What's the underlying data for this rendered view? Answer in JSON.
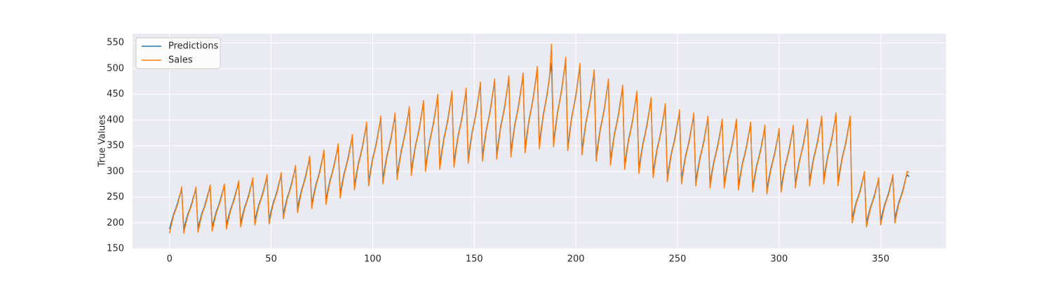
{
  "chart_data": {
    "type": "line",
    "ylabel": "True Values",
    "xlim": [
      -18.2,
      382.2
    ],
    "ylim": [
      150,
      568
    ],
    "xticks": [
      0,
      50,
      100,
      150,
      200,
      250,
      300,
      350
    ],
    "yticks": [
      150,
      200,
      250,
      300,
      350,
      400,
      450,
      500,
      550
    ],
    "grid": true,
    "legend": "upper left",
    "x": [
      0,
      1,
      2,
      3,
      4,
      5,
      6,
      7,
      8,
      9,
      10,
      11,
      12,
      13,
      14,
      15,
      16,
      17,
      18,
      19,
      20,
      21,
      22,
      23,
      24,
      25,
      26,
      27,
      28,
      29,
      30,
      31,
      32,
      33,
      34,
      35,
      36,
      37,
      38,
      39,
      40,
      41,
      42,
      43,
      44,
      45,
      46,
      47,
      48,
      49,
      50,
      51,
      52,
      53,
      54,
      55,
      56,
      57,
      58,
      59,
      60,
      61,
      62,
      63,
      64,
      65,
      66,
      67,
      68,
      69,
      70,
      71,
      72,
      73,
      74,
      75,
      76,
      77,
      78,
      79,
      80,
      81,
      82,
      83,
      84,
      85,
      86,
      87,
      88,
      89,
      90,
      91,
      92,
      93,
      94,
      95,
      96,
      97,
      98,
      99,
      100,
      101,
      102,
      103,
      104,
      105,
      106,
      107,
      108,
      109,
      110,
      111,
      112,
      113,
      114,
      115,
      116,
      117,
      118,
      119,
      120,
      121,
      122,
      123,
      124,
      125,
      126,
      127,
      128,
      129,
      130,
      131,
      132,
      133,
      134,
      135,
      136,
      137,
      138,
      139,
      140,
      141,
      142,
      143,
      144,
      145,
      146,
      147,
      148,
      149,
      150,
      151,
      152,
      153,
      154,
      155,
      156,
      157,
      158,
      159,
      160,
      161,
      162,
      163,
      164,
      165,
      166,
      167,
      168,
      169,
      170,
      171,
      172,
      173,
      174,
      175,
      176,
      177,
      178,
      179,
      180,
      181,
      182,
      183,
      184,
      185,
      186,
      187,
      188,
      189,
      190,
      191,
      192,
      193,
      194,
      195,
      196,
      197,
      198,
      199,
      200,
      201,
      202,
      203,
      204,
      205,
      206,
      207,
      208,
      209,
      210,
      211,
      212,
      213,
      214,
      215,
      216,
      217,
      218,
      219,
      220,
      221,
      222,
      223,
      224,
      225,
      226,
      227,
      228,
      229,
      230,
      231,
      232,
      233,
      234,
      235,
      236,
      237,
      238,
      239,
      240,
      241,
      242,
      243,
      244,
      245,
      246,
      247,
      248,
      249,
      250,
      251,
      252,
      253,
      254,
      255,
      256,
      257,
      258,
      259,
      260,
      261,
      262,
      263,
      264,
      265,
      266,
      267,
      268,
      269,
      270,
      271,
      272,
      273,
      274,
      275,
      276,
      277,
      278,
      279,
      280,
      281,
      282,
      283,
      284,
      285,
      286,
      287,
      288,
      289,
      290,
      291,
      292,
      293,
      294,
      295,
      296,
      297,
      298,
      299,
      300,
      301,
      302,
      303,
      304,
      305,
      306,
      307,
      308,
      309,
      310,
      311,
      312,
      313,
      314,
      315,
      316,
      317,
      318,
      319,
      320,
      321,
      322,
      323,
      324,
      325,
      326,
      327,
      328,
      329,
      330,
      331,
      332,
      333,
      334,
      335,
      336,
      337,
      338,
      339,
      340,
      341,
      342,
      343,
      344,
      345,
      346,
      347,
      348,
      349,
      350,
      351,
      352,
      353,
      354,
      355,
      356,
      357,
      358,
      359,
      360,
      361,
      362,
      363,
      364
    ],
    "series": [
      {
        "name": "Predictions",
        "color": "#1f77b4",
        "values": [
          188,
          203,
          217,
          227,
          239,
          254,
          264,
          188,
          203,
          217,
          227,
          239,
          254,
          264,
          190,
          205,
          220,
          230,
          243,
          258,
          268,
          192,
          207,
          222,
          232,
          245,
          260,
          270,
          196,
          212,
          226,
          237,
          250,
          265,
          276,
          200,
          216,
          231,
          242,
          255,
          271,
          282,
          204,
          221,
          236,
          247,
          260,
          276,
          288,
          206,
          223,
          239,
          250,
          263,
          280,
          292,
          216,
          234,
          250,
          262,
          276,
          293,
          306,
          228,
          247,
          264,
          277,
          292,
          310,
          324,
          236,
          256,
          274,
          287,
          302,
          321,
          336,
          244,
          265,
          283,
          297,
          313,
          332,
          348,
          256,
          278,
          298,
          312,
          329,
          349,
          366,
          272,
          295,
          317,
          332,
          350,
          372,
          390,
          280,
          304,
          326,
          342,
          360,
          383,
          402,
          284,
          309,
          331,
          347,
          365,
          388,
          408,
          292,
          317,
          340,
          357,
          376,
          400,
          420,
          300,
          326,
          350,
          367,
          386,
          411,
          432,
          308,
          335,
          359,
          377,
          397,
          422,
          444,
          312,
          339,
          364,
          382,
          402,
          428,
          450,
          316,
          344,
          369,
          387,
          407,
          433,
          456,
          324,
          353,
          378,
          397,
          418,
          444,
          468,
          328,
          357,
          383,
          402,
          423,
          450,
          474,
          332,
          361,
          388,
          407,
          428,
          456,
          480,
          336,
          366,
          393,
          412,
          434,
          461,
          486,
          344,
          375,
          402,
          422,
          444,
          472,
          498,
          352,
          383,
          412,
          432,
          455,
          484,
          510,
          356,
          388,
          416,
          437,
          460,
          489,
          516,
          348,
          379,
          407,
          427,
          449,
          478,
          504,
          340,
          370,
          397,
          417,
          439,
          467,
          492,
          328,
          357,
          383,
          402,
          423,
          450,
          474,
          320,
          348,
          374,
          392,
          413,
          439,
          462,
          312,
          339,
          364,
          382,
          402,
          428,
          450,
          304,
          331,
          355,
          372,
          392,
          416,
          438,
          296,
          322,
          345,
          362,
          381,
          405,
          426,
          288,
          313,
          336,
          352,
          371,
          394,
          414,
          284,
          309,
          331,
          347,
          365,
          388,
          408,
          280,
          304,
          326,
          342,
          360,
          383,
          402,
          276,
          300,
          321,
          337,
          355,
          377,
          396,
          276,
          300,
          321,
          337,
          355,
          377,
          396,
          272,
          295,
          317,
          332,
          350,
          372,
          390,
          268,
          291,
          312,
          327,
          344,
          366,
          384,
          264,
          287,
          307,
          322,
          339,
          360,
          378,
          268,
          291,
          312,
          327,
          344,
          366,
          384,
          276,
          300,
          321,
          337,
          355,
          377,
          396,
          280,
          304,
          326,
          342,
          360,
          383,
          402,
          284,
          309,
          331,
          347,
          365,
          388,
          408,
          280,
          304,
          326,
          342,
          360,
          383,
          402,
          208,
          225,
          241,
          252,
          265,
          282,
          294,
          200,
          216,
          231,
          242,
          255,
          271,
          282,
          204,
          221,
          236,
          247,
          260,
          276,
          288,
          208,
          225,
          241,
          252,
          265,
          282,
          294,
          290
        ]
      },
      {
        "name": "Sales",
        "color": "#ff7f0e",
        "values": [
          180,
          198,
          214,
          225,
          236,
          252,
          270,
          180,
          198,
          214,
          225,
          236,
          252,
          270,
          182,
          200,
          217,
          228,
          240,
          256,
          274,
          184,
          202,
          219,
          230,
          242,
          258,
          276,
          188,
          207,
          223,
          235,
          247,
          263,
          282,
          192,
          211,
          228,
          240,
          252,
          269,
          288,
          196,
          216,
          233,
          245,
          257,
          274,
          294,
          198,
          218,
          236,
          248,
          260,
          278,
          298,
          208,
          229,
          247,
          260,
          273,
          291,
          312,
          220,
          242,
          261,
          275,
          289,
          308,
          330,
          228,
          251,
          271,
          285,
          299,
          319,
          342,
          236,
          260,
          280,
          295,
          310,
          330,
          354,
          248,
          273,
          295,
          310,
          326,
          347,
          372,
          264,
          290,
          314,
          330,
          347,
          370,
          396,
          272,
          299,
          323,
          340,
          357,
          381,
          408,
          276,
          304,
          328,
          345,
          362,
          386,
          414,
          284,
          312,
          337,
          355,
          373,
          398,
          426,
          292,
          321,
          347,
          365,
          383,
          409,
          438,
          300,
          330,
          356,
          375,
          394,
          420,
          450,
          304,
          334,
          361,
          380,
          399,
          426,
          456,
          308,
          339,
          366,
          385,
          404,
          431,
          462,
          316,
          348,
          375,
          395,
          415,
          442,
          474,
          320,
          352,
          380,
          400,
          420,
          448,
          480,
          324,
          356,
          385,
          405,
          425,
          454,
          486,
          328,
          361,
          390,
          410,
          431,
          459,
          492,
          336,
          370,
          399,
          420,
          441,
          470,
          504,
          344,
          378,
          409,
          430,
          452,
          482,
          548,
          348,
          383,
          413,
          435,
          457,
          487,
          522,
          340,
          374,
          404,
          425,
          446,
          476,
          510,
          332,
          365,
          394,
          415,
          436,
          465,
          498,
          320,
          352,
          380,
          400,
          420,
          448,
          480,
          312,
          343,
          371,
          390,
          410,
          437,
          468,
          304,
          334,
          361,
          380,
          399,
          426,
          456,
          296,
          326,
          352,
          370,
          389,
          414,
          444,
          288,
          317,
          342,
          360,
          378,
          403,
          432,
          280,
          308,
          333,
          350,
          368,
          392,
          420,
          276,
          304,
          328,
          345,
          362,
          386,
          414,
          272,
          299,
          323,
          340,
          357,
          381,
          408,
          268,
          295,
          318,
          335,
          352,
          375,
          402,
          268,
          295,
          318,
          335,
          352,
          375,
          402,
          264,
          290,
          314,
          330,
          347,
          370,
          396,
          260,
          286,
          309,
          325,
          341,
          364,
          390,
          256,
          282,
          304,
          320,
          336,
          358,
          384,
          260,
          286,
          309,
          325,
          341,
          364,
          390,
          268,
          295,
          318,
          335,
          352,
          375,
          402,
          272,
          299,
          323,
          340,
          357,
          381,
          408,
          276,
          304,
          328,
          345,
          362,
          386,
          414,
          272,
          299,
          323,
          340,
          357,
          381,
          408,
          200,
          220,
          238,
          250,
          262,
          280,
          300,
          192,
          211,
          228,
          240,
          252,
          269,
          288,
          196,
          216,
          233,
          245,
          257,
          274,
          294,
          200,
          220,
          238,
          250,
          262,
          280,
          300,
          298
        ]
      }
    ]
  }
}
